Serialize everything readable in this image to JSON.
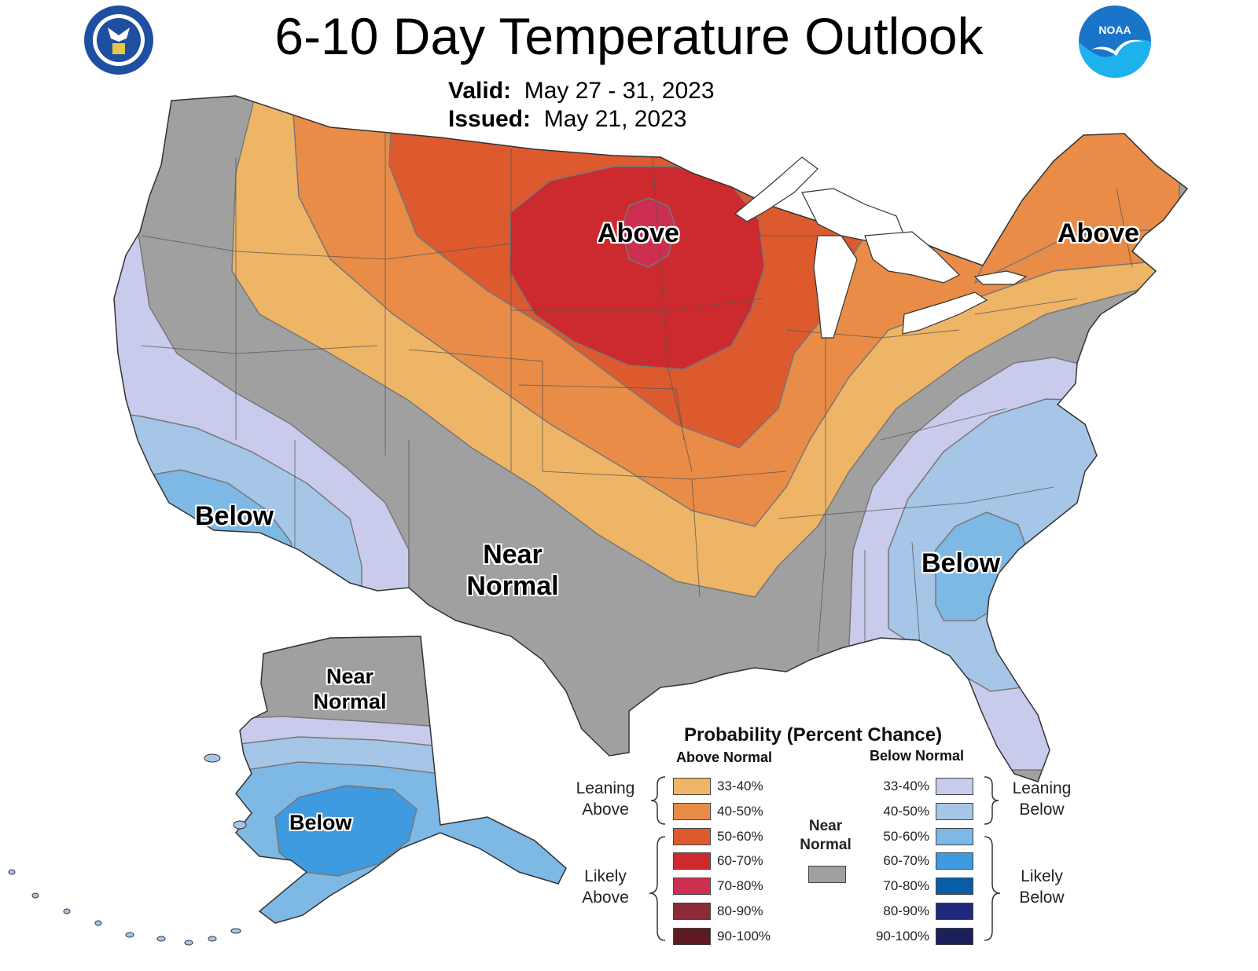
{
  "header": {
    "title": "6-10 Day Temperature Outlook",
    "valid_label": "Valid:",
    "valid_value": "May 27 - 31, 2023",
    "issued_label": "Issued:",
    "issued_value": "May 21, 2023"
  },
  "logos": {
    "left": "department-of-commerce-seal",
    "right": "noaa-logo",
    "right_text": "NOAA"
  },
  "regions": {
    "upper_midwest": "Above",
    "northeast": "Above",
    "california": "Below",
    "southern_plains_1": "Near",
    "southern_plains_2": "Normal",
    "southeast": "Below",
    "alaska_north_1": "Near",
    "alaska_north_2": "Normal",
    "alaska_south": "Below"
  },
  "legend": {
    "title": "Probability (Percent Chance)",
    "above_header": "Above Normal",
    "below_header": "Below Normal",
    "near_normal_1": "Near",
    "near_normal_2": "Normal",
    "near_normal_color": "#a0a0a0",
    "leaning_above_1": "Leaning",
    "leaning_above_2": "Above",
    "likely_above_1": "Likely",
    "likely_above_2": "Above",
    "leaning_below_1": "Leaning",
    "leaning_below_2": "Below",
    "likely_below_1": "Likely",
    "likely_below_2": "Below",
    "above": [
      {
        "range": "33-40%",
        "color": "#efb566"
      },
      {
        "range": "40-50%",
        "color": "#e88c48"
      },
      {
        "range": "50-60%",
        "color": "#dc5a2e"
      },
      {
        "range": "60-70%",
        "color": "#cc2a2e"
      },
      {
        "range": "70-80%",
        "color": "#cc2f4f"
      },
      {
        "range": "80-90%",
        "color": "#8c2a3a"
      },
      {
        "range": "90-100%",
        "color": "#5e1a22"
      }
    ],
    "below": [
      {
        "range": "33-40%",
        "color": "#c8cbeb"
      },
      {
        "range": "40-50%",
        "color": "#a6c6e8"
      },
      {
        "range": "50-60%",
        "color": "#7eb8e4"
      },
      {
        "range": "60-70%",
        "color": "#3f9ae0"
      },
      {
        "range": "70-80%",
        "color": "#0a5ea8"
      },
      {
        "range": "80-90%",
        "color": "#1f2a7c"
      },
      {
        "range": "90-100%",
        "color": "#1c1f5a"
      }
    ]
  }
}
